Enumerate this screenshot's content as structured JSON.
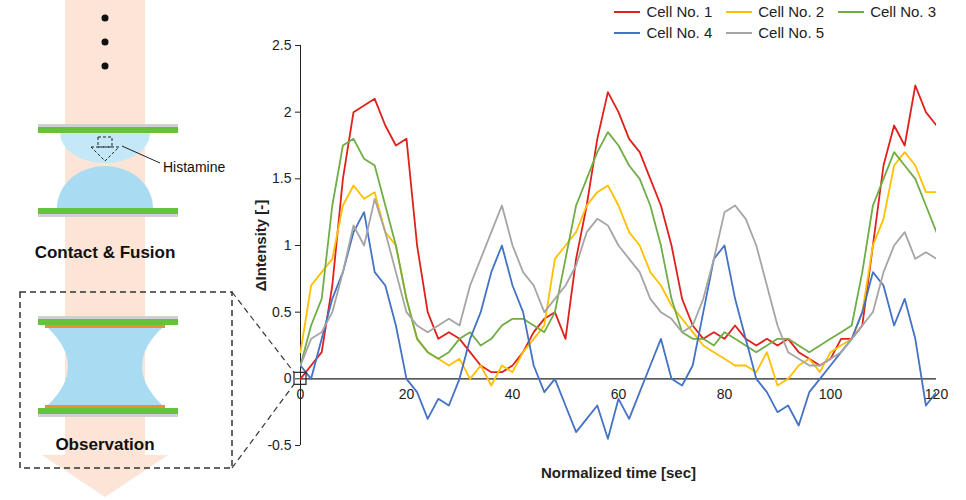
{
  "chart_data": {
    "type": "line",
    "x_label": "Normalized time [sec]",
    "y_label": "ΔIntensity [-]",
    "x": [
      0,
      2,
      4,
      6,
      8,
      10,
      12,
      14,
      16,
      18,
      20,
      22,
      24,
      26,
      28,
      30,
      32,
      34,
      36,
      38,
      40,
      42,
      44,
      46,
      48,
      50,
      52,
      54,
      56,
      58,
      60,
      62,
      64,
      66,
      68,
      70,
      72,
      74,
      76,
      78,
      80,
      82,
      84,
      86,
      88,
      90,
      92,
      94,
      96,
      98,
      100,
      102,
      104,
      106,
      108,
      110,
      112,
      114,
      116,
      118,
      120
    ],
    "xlim": [
      0,
      120
    ],
    "xticks": [
      0,
      20,
      40,
      60,
      80,
      100,
      120
    ],
    "ylim": [
      -0.5,
      2.5
    ],
    "yticks": [
      -0.5,
      0,
      0.5,
      1,
      1.5,
      2,
      2.5
    ],
    "legend": "top-right",
    "series": [
      {
        "name": "Cell No. 1",
        "color": "#e0201b",
        "values": [
          0,
          0.1,
          0.2,
          0.7,
          1.5,
          2.0,
          2.05,
          2.1,
          1.9,
          1.75,
          1.8,
          1.0,
          0.5,
          0.3,
          0.35,
          0.3,
          0.2,
          0.1,
          0.05,
          0.05,
          0.1,
          0.2,
          0.35,
          0.45,
          0.5,
          0.3,
          0.9,
          1.3,
          1.8,
          2.15,
          2.0,
          1.8,
          1.7,
          1.5,
          1.3,
          1.0,
          0.6,
          0.4,
          0.3,
          0.35,
          0.3,
          0.4,
          0.3,
          0.25,
          0.3,
          0.25,
          0.3,
          0.2,
          0.15,
          0.1,
          0.15,
          0.3,
          0.3,
          0.4,
          1.0,
          1.6,
          1.9,
          1.75,
          2.2,
          2.0,
          1.9
        ]
      },
      {
        "name": "Cell No. 2",
        "color": "#ffc000",
        "values": [
          0.2,
          0.7,
          0.8,
          0.9,
          1.3,
          1.45,
          1.35,
          1.4,
          1.1,
          1.0,
          0.6,
          0.3,
          0.2,
          0.15,
          0.1,
          0.15,
          0.0,
          0.1,
          -0.05,
          0.1,
          0.05,
          0.2,
          0.3,
          0.4,
          0.9,
          1.0,
          1.1,
          1.3,
          1.4,
          1.45,
          1.3,
          1.1,
          1.0,
          0.8,
          0.7,
          0.55,
          0.45,
          0.35,
          0.25,
          0.2,
          0.15,
          0.1,
          0.1,
          0.05,
          0.2,
          -0.05,
          0.0,
          0.1,
          0.15,
          0.05,
          0.2,
          0.25,
          0.3,
          0.5,
          1.0,
          1.2,
          1.6,
          1.7,
          1.6,
          1.4,
          1.4
        ]
      },
      {
        "name": "Cell No. 3",
        "color": "#70ad47",
        "values": [
          0.1,
          0.4,
          0.6,
          1.3,
          1.75,
          1.8,
          1.65,
          1.6,
          1.3,
          1.0,
          0.6,
          0.3,
          0.2,
          0.15,
          0.2,
          0.3,
          0.35,
          0.25,
          0.3,
          0.4,
          0.45,
          0.45,
          0.4,
          0.35,
          0.5,
          0.9,
          1.3,
          1.5,
          1.7,
          1.85,
          1.75,
          1.6,
          1.5,
          1.3,
          1.0,
          0.6,
          0.35,
          0.3,
          0.3,
          0.25,
          0.35,
          0.3,
          0.25,
          0.2,
          0.25,
          0.3,
          0.3,
          0.25,
          0.2,
          0.25,
          0.3,
          0.35,
          0.4,
          0.8,
          1.3,
          1.5,
          1.7,
          1.6,
          1.5,
          1.3,
          1.1
        ]
      },
      {
        "name": "Cell No. 4",
        "color": "#4472c4",
        "values": [
          0.1,
          0.0,
          0.3,
          0.6,
          0.8,
          1.1,
          1.25,
          0.8,
          0.7,
          0.4,
          0.0,
          -0.1,
          -0.3,
          -0.15,
          -0.2,
          0.0,
          0.3,
          0.5,
          0.8,
          1.0,
          0.7,
          0.5,
          0.1,
          -0.1,
          0.0,
          -0.2,
          -0.4,
          -0.3,
          -0.2,
          -0.45,
          -0.15,
          -0.3,
          -0.1,
          0.1,
          0.3,
          0.0,
          -0.05,
          0.1,
          0.5,
          0.9,
          1.0,
          0.6,
          0.3,
          0.0,
          -0.1,
          -0.25,
          -0.2,
          -0.35,
          -0.1,
          0.0,
          0.1,
          0.2,
          0.3,
          0.5,
          0.8,
          0.7,
          0.4,
          0.6,
          0.3,
          -0.2,
          -0.1
        ]
      },
      {
        "name": "Cell No. 5",
        "color": "#a5a5a5",
        "values": [
          0.1,
          0.3,
          0.35,
          0.5,
          0.8,
          1.15,
          1.0,
          1.35,
          1.1,
          0.8,
          0.5,
          0.4,
          0.35,
          0.4,
          0.45,
          0.4,
          0.7,
          0.9,
          1.1,
          1.3,
          1.0,
          0.8,
          0.7,
          0.5,
          0.6,
          0.7,
          0.85,
          1.1,
          1.2,
          1.15,
          1.0,
          0.9,
          0.8,
          0.6,
          0.5,
          0.45,
          0.35,
          0.4,
          0.6,
          0.9,
          1.25,
          1.3,
          1.2,
          1.0,
          0.7,
          0.4,
          0.2,
          0.15,
          0.1,
          0.1,
          0.15,
          0.2,
          0.3,
          0.4,
          0.5,
          0.8,
          1.0,
          1.1,
          0.9,
          0.95,
          0.9
        ]
      }
    ]
  },
  "diagram": {
    "labels": {
      "histamine": "Histamine",
      "step1": "Contact & Fusion",
      "step2": "Observation"
    }
  }
}
